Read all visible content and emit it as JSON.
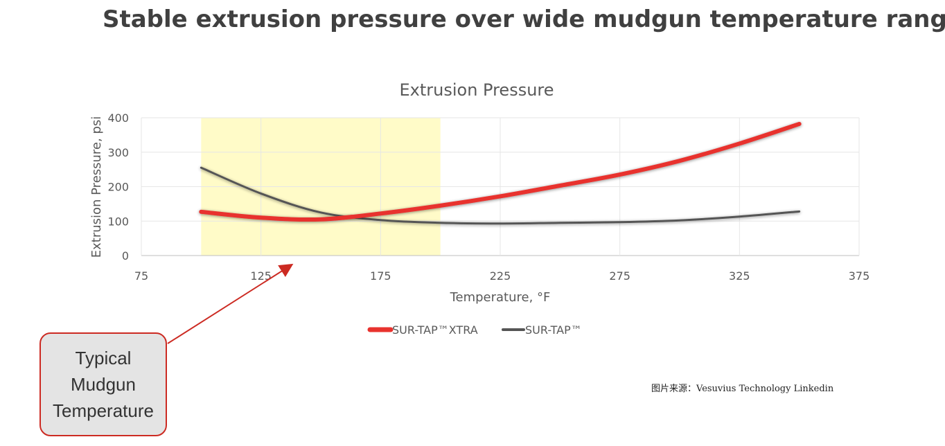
{
  "headline": "Stable extrusion pressure over wide mudgun temperature range",
  "callout": {
    "text": "Typical Mudgun Temperature"
  },
  "source": "图片来源：Vesuvius Technology Linkedin",
  "chart_data": {
    "type": "line",
    "title": "Extrusion Pressure",
    "xlabel": "Temperature, °F",
    "ylabel": "Extrusion Pressure, psi",
    "xlim": [
      75,
      375
    ],
    "ylim": [
      0,
      400
    ],
    "xticks": [
      75,
      125,
      175,
      225,
      275,
      325,
      375
    ],
    "yticks": [
      0,
      100,
      200,
      300,
      400
    ],
    "grid": true,
    "legend": "bottom",
    "highlight_range": [
      100,
      200
    ],
    "highlight_color": "#fffbc8",
    "series": [
      {
        "name": "SUR-TAP™XTRA",
        "color": "#e8322e",
        "x": [
          100,
          125,
          150,
          175,
          200,
          225,
          250,
          275,
          300,
          325,
          350
        ],
        "values": [
          127,
          110,
          105,
          122,
          145,
          172,
          203,
          235,
          275,
          325,
          382
        ]
      },
      {
        "name": "SUR-TAP™",
        "color": "#555555",
        "x": [
          100,
          125,
          150,
          175,
          200,
          225,
          250,
          275,
          300,
          325,
          350
        ],
        "values": [
          255,
          180,
          125,
          103,
          95,
          93,
          95,
          97,
          102,
          113,
          128
        ]
      }
    ]
  }
}
